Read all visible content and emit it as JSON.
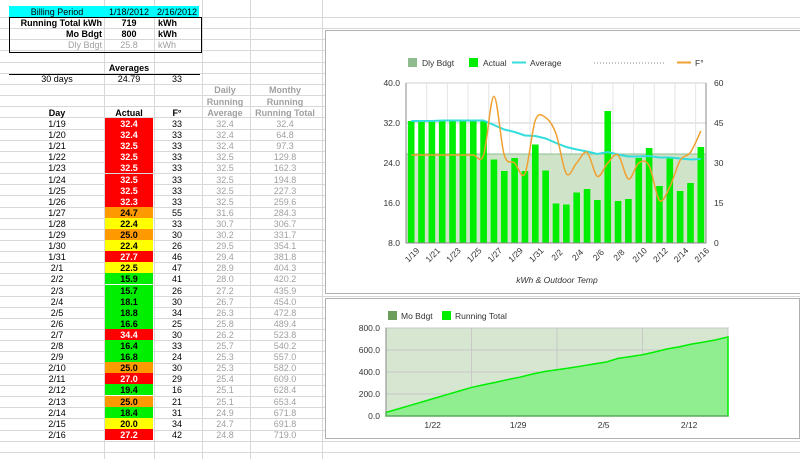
{
  "header": {
    "billing_label": "Billing Period",
    "billing_start": "1/18/2012",
    "billing_end": "2/16/2012",
    "running_total_label": "Running Total kWh",
    "running_total_value": "719",
    "running_total_unit": "kWh",
    "mo_bdgt_label": "Mo Bdgt",
    "mo_bdgt_value": "800",
    "mo_bdgt_unit": "kWh",
    "dly_bdgt_label": "Dly Bdgt",
    "dly_bdgt_value": "25.8",
    "dly_bdgt_unit": "kWh"
  },
  "averages": {
    "title": "Averages",
    "label": "30 days",
    "kwh": "24.79",
    "temp": "33"
  },
  "table": {
    "col_day": "Day",
    "col_actual": "Actual",
    "col_temp": "F°",
    "col_daily_1": "Daily",
    "col_daily_2": "Running",
    "col_daily_3": "Average",
    "col_monthly_1": "Monthy",
    "col_monthly_2": "Running",
    "col_monthly_3": "Running Total",
    "rows": [
      {
        "day": "1/19",
        "actual": "32.4",
        "temp": "33",
        "avg": "32.4",
        "total": "32.4",
        "color": "#ff0000"
      },
      {
        "day": "1/20",
        "actual": "32.4",
        "temp": "33",
        "avg": "32.4",
        "total": "64.8",
        "color": "#ff0000"
      },
      {
        "day": "1/21",
        "actual": "32.5",
        "temp": "33",
        "avg": "32.4",
        "total": "97.3",
        "color": "#ff0000"
      },
      {
        "day": "1/22",
        "actual": "32.5",
        "temp": "33",
        "avg": "32.5",
        "total": "129.8",
        "color": "#ff0000"
      },
      {
        "day": "1/23",
        "actual": "32.5",
        "temp": "33",
        "avg": "32.5",
        "total": "162.3",
        "color": "#ff0000"
      },
      {
        "day": "1/24",
        "actual": "32.5",
        "temp": "33",
        "avg": "32.5",
        "total": "194.8",
        "color": "#ff0000"
      },
      {
        "day": "1/25",
        "actual": "32.5",
        "temp": "33",
        "avg": "32.5",
        "total": "227.3",
        "color": "#ff0000"
      },
      {
        "day": "1/26",
        "actual": "32.3",
        "temp": "33",
        "avg": "32.5",
        "total": "259.6",
        "color": "#ff0000"
      },
      {
        "day": "1/27",
        "actual": "24.7",
        "temp": "55",
        "avg": "31.6",
        "total": "284.3",
        "color": "#ff9900"
      },
      {
        "day": "1/28",
        "actual": "22.4",
        "temp": "33",
        "avg": "30.7",
        "total": "306.7",
        "color": "#ffff00"
      },
      {
        "day": "1/29",
        "actual": "25.0",
        "temp": "30",
        "avg": "30.2",
        "total": "331.7",
        "color": "#ff9900"
      },
      {
        "day": "1/30",
        "actual": "22.4",
        "temp": "26",
        "avg": "29.5",
        "total": "354.1",
        "color": "#ffff00"
      },
      {
        "day": "1/31",
        "actual": "27.7",
        "temp": "46",
        "avg": "29.4",
        "total": "381.8",
        "color": "#ff0000"
      },
      {
        "day": "2/1",
        "actual": "22.5",
        "temp": "47",
        "avg": "28.9",
        "total": "404.3",
        "color": "#ffff00"
      },
      {
        "day": "2/2",
        "actual": "15.9",
        "temp": "41",
        "avg": "28.0",
        "total": "420.2",
        "color": "#00ee00"
      },
      {
        "day": "2/3",
        "actual": "15.7",
        "temp": "26",
        "avg": "27.2",
        "total": "435.9",
        "color": "#00ee00"
      },
      {
        "day": "2/4",
        "actual": "18.1",
        "temp": "30",
        "avg": "26.7",
        "total": "454.0",
        "color": "#00ee00"
      },
      {
        "day": "2/5",
        "actual": "18.8",
        "temp": "34",
        "avg": "26.3",
        "total": "472.8",
        "color": "#00ee00"
      },
      {
        "day": "2/6",
        "actual": "16.6",
        "temp": "25",
        "avg": "25.8",
        "total": "489.4",
        "color": "#00ee00"
      },
      {
        "day": "2/7",
        "actual": "34.4",
        "temp": "30",
        "avg": "26.2",
        "total": "523.8",
        "color": "#ff0000"
      },
      {
        "day": "2/8",
        "actual": "16.4",
        "temp": "33",
        "avg": "25.7",
        "total": "540.2",
        "color": "#00ee00"
      },
      {
        "day": "2/9",
        "actual": "16.8",
        "temp": "24",
        "avg": "25.3",
        "total": "557.0",
        "color": "#00ee00"
      },
      {
        "day": "2/10",
        "actual": "25.0",
        "temp": "30",
        "avg": "25.3",
        "total": "582.0",
        "color": "#ff9900"
      },
      {
        "day": "2/11",
        "actual": "27.0",
        "temp": "29",
        "avg": "25.4",
        "total": "609.0",
        "color": "#ff0000"
      },
      {
        "day": "2/12",
        "actual": "19.4",
        "temp": "16",
        "avg": "25.1",
        "total": "628.4",
        "color": "#00ee00"
      },
      {
        "day": "2/13",
        "actual": "25.0",
        "temp": "21",
        "avg": "25.1",
        "total": "653.4",
        "color": "#ff9900"
      },
      {
        "day": "2/14",
        "actual": "18.4",
        "temp": "31",
        "avg": "24.9",
        "total": "671.8",
        "color": "#00ee00"
      },
      {
        "day": "2/15",
        "actual": "20.0",
        "temp": "34",
        "avg": "24.7",
        "total": "691.8",
        "color": "#ffff00"
      },
      {
        "day": "2/16",
        "actual": "27.2",
        "temp": "42",
        "avg": "24.8",
        "total": "719.0",
        "color": "#ff0000"
      }
    ]
  },
  "chart_data": [
    {
      "type": "bar",
      "title": "",
      "xlabel": "kWh & Outdoor Temp",
      "legend": [
        "Dly Bdgt",
        "Actual",
        "Average",
        "F°"
      ],
      "legend_placement": "top",
      "categories": [
        "1/19",
        "1/20",
        "1/21",
        "1/22",
        "1/23",
        "1/24",
        "1/25",
        "1/26",
        "1/27",
        "1/28",
        "1/29",
        "1/30",
        "1/31",
        "2/1",
        "2/2",
        "2/3",
        "2/4",
        "2/5",
        "2/6",
        "2/7",
        "2/8",
        "2/9",
        "2/10",
        "2/11",
        "2/12",
        "2/13",
        "2/14",
        "2/15",
        "2/16"
      ],
      "x_tick_labels": [
        "1/19",
        "1/21",
        "1/23",
        "1/25",
        "1/27",
        "1/29",
        "1/31",
        "2/2",
        "2/4",
        "2/6",
        "2/8",
        "2/10",
        "2/12",
        "2/14",
        "2/16"
      ],
      "ylim_left": [
        8.0,
        40.0
      ],
      "yticks_left": [
        "8.0",
        "16.0",
        "24.0",
        "32.0",
        "40.0"
      ],
      "ylim_right": [
        0,
        60
      ],
      "yticks_right": [
        "0",
        "15",
        "30",
        "45",
        "60"
      ],
      "series": [
        {
          "name": "Dly Bdgt",
          "type": "area",
          "axis": "left",
          "values": [
            25.8,
            25.8,
            25.8,
            25.8,
            25.8,
            25.8,
            25.8,
            25.8,
            25.8,
            25.8,
            25.8,
            25.8,
            25.8,
            25.8,
            25.8,
            25.8,
            25.8,
            25.8,
            25.8,
            25.8,
            25.8,
            25.8,
            25.8,
            25.8,
            25.8,
            25.8,
            25.8,
            25.8,
            25.8
          ]
        },
        {
          "name": "Actual",
          "type": "bar",
          "axis": "left",
          "values": [
            32.4,
            32.4,
            32.5,
            32.5,
            32.5,
            32.5,
            32.5,
            32.3,
            24.7,
            22.4,
            25.0,
            22.4,
            27.7,
            22.5,
            15.9,
            15.7,
            18.1,
            18.8,
            16.6,
            34.4,
            16.4,
            16.8,
            25.0,
            27.0,
            19.4,
            25.0,
            18.4,
            20.0,
            27.2
          ]
        },
        {
          "name": "Average",
          "type": "line",
          "axis": "left",
          "values": [
            32.4,
            32.4,
            32.4,
            32.5,
            32.5,
            32.5,
            32.5,
            32.5,
            31.6,
            30.7,
            30.2,
            29.5,
            29.4,
            28.9,
            28.0,
            27.2,
            26.7,
            26.3,
            25.8,
            26.2,
            25.7,
            25.3,
            25.3,
            25.4,
            25.1,
            25.1,
            24.9,
            24.7,
            24.8
          ]
        },
        {
          "name": "F°",
          "type": "line",
          "axis": "right",
          "values": [
            33,
            33,
            33,
            33,
            33,
            33,
            33,
            33,
            55,
            33,
            30,
            26,
            46,
            47,
            41,
            26,
            30,
            34,
            25,
            30,
            33,
            24,
            30,
            29,
            16,
            21,
            31,
            34,
            42
          ]
        }
      ],
      "colors": {
        "Dly Bdgt": "#8fbc8f",
        "Actual": "#00ee00",
        "Average": "#33dddd",
        "F°": "#f0a030"
      },
      "grid": true
    },
    {
      "type": "area",
      "title": "",
      "legend": [
        "Mo Bdgt",
        "Running Total"
      ],
      "legend_placement": "top",
      "x_tick_labels": [
        "1/22",
        "1/29",
        "2/5",
        "2/12"
      ],
      "ylim": [
        0.0,
        800.0
      ],
      "yticks": [
        "0.0",
        "200.0",
        "400.0",
        "600.0",
        "800.0"
      ],
      "series": [
        {
          "name": "Mo Bdgt",
          "type": "area",
          "values": [
            800,
            800,
            800,
            800,
            800,
            800,
            800,
            800,
            800,
            800,
            800,
            800,
            800,
            800,
            800,
            800,
            800,
            800,
            800,
            800,
            800,
            800,
            800,
            800,
            800,
            800,
            800,
            800,
            800
          ]
        },
        {
          "name": "Running Total",
          "type": "area",
          "values": [
            32.4,
            64.8,
            97.3,
            129.8,
            162.3,
            194.8,
            227.3,
            259.6,
            284.3,
            306.7,
            331.7,
            354.1,
            381.8,
            404.3,
            420.2,
            435.9,
            454.0,
            472.8,
            489.4,
            523.8,
            540.2,
            557.0,
            582.0,
            609.0,
            628.4,
            653.4,
            671.8,
            691.8,
            719.0
          ]
        }
      ],
      "colors": {
        "Mo Bdgt": "#6a9e5a",
        "Running Total": "#00ee00"
      },
      "grid": true
    }
  ]
}
